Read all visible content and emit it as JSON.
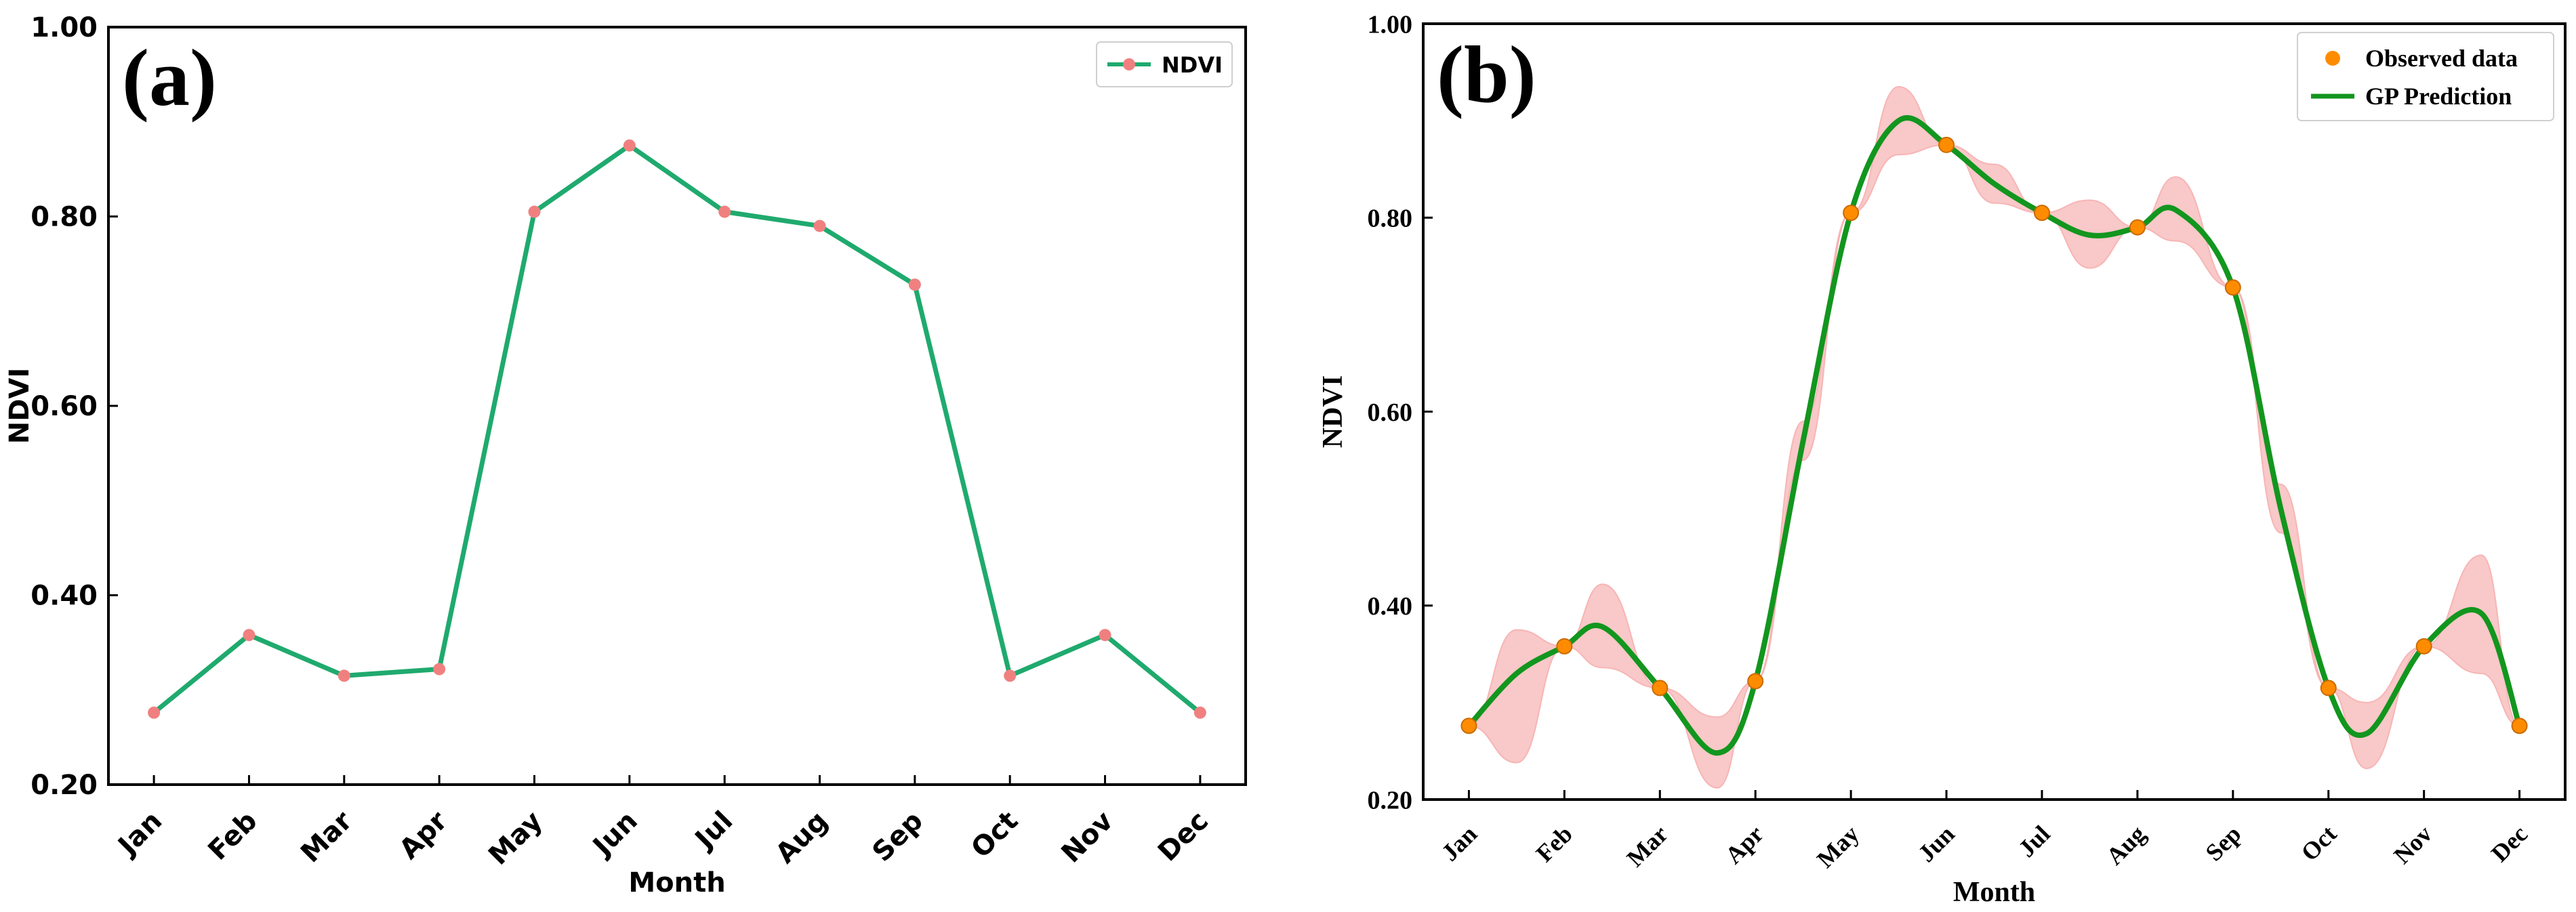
{
  "colors": {
    "ndvi_line": "#1faa6e",
    "ndvi_marker": "#f08080",
    "gp_line": "#12961e",
    "gp_band": "#f7b5b5",
    "observed_marker": "#ff8c00"
  },
  "chart_data": [
    {
      "type": "line",
      "panel_label": "(a)",
      "title": "",
      "xlabel": "Month",
      "ylabel": "NDVI",
      "categories": [
        "Jan",
        "Feb",
        "Mar",
        "Apr",
        "May",
        "Jun",
        "Jul",
        "Aug",
        "Sep",
        "Oct",
        "Nov",
        "Dec"
      ],
      "ylim": [
        0.2,
        1.0
      ],
      "yticks": [
        "0.20",
        "0.40",
        "0.60",
        "0.80",
        "1.00"
      ],
      "series": [
        {
          "name": "NDVI",
          "values": [
            0.276,
            0.358,
            0.315,
            0.322,
            0.805,
            0.875,
            0.805,
            0.79,
            0.728,
            0.315,
            0.358,
            0.276
          ]
        }
      ],
      "legend": {
        "position": "top-right",
        "entries": [
          "NDVI"
        ]
      }
    },
    {
      "type": "line",
      "panel_label": "(b)",
      "title": "",
      "xlabel": "Month",
      "ylabel": "NDVI",
      "categories": [
        "Jan",
        "Feb",
        "Mar",
        "Apr",
        "May",
        "Jun",
        "Jul",
        "Aug",
        "Sep",
        "Oct",
        "Nov",
        "Dec"
      ],
      "ylim": [
        0.2,
        1.0
      ],
      "yticks": [
        "0.20",
        "0.40",
        "0.60",
        "0.80",
        "1.00"
      ],
      "observed": {
        "name": "Observed data",
        "values": [
          0.276,
          0.358,
          0.315,
          0.322,
          0.805,
          0.875,
          0.805,
          0.79,
          0.728,
          0.315,
          0.358,
          0.276
        ]
      },
      "prediction": {
        "name": "GP Prediction",
        "x": [
          0,
          0.5,
          1,
          1.4,
          2,
          2.6,
          3,
          3.5,
          4,
          4.5,
          5,
          5.5,
          6,
          6.5,
          7,
          7.4,
          8,
          8.5,
          9,
          9.4,
          10,
          10.6,
          11
        ],
        "values": [
          0.276,
          0.33,
          0.358,
          0.378,
          0.315,
          0.248,
          0.322,
          0.57,
          0.805,
          0.9,
          0.875,
          0.835,
          0.805,
          0.782,
          0.79,
          0.808,
          0.728,
          0.5,
          0.315,
          0.268,
          0.358,
          0.392,
          0.276
        ],
        "lower": [
          0.276,
          0.238,
          0.358,
          0.336,
          0.315,
          0.212,
          0.322,
          0.55,
          0.805,
          0.865,
          0.875,
          0.815,
          0.805,
          0.748,
          0.79,
          0.776,
          0.728,
          0.475,
          0.315,
          0.232,
          0.358,
          0.33,
          0.276
        ],
        "upper": [
          0.276,
          0.375,
          0.358,
          0.422,
          0.315,
          0.285,
          0.322,
          0.59,
          0.805,
          0.935,
          0.875,
          0.855,
          0.805,
          0.818,
          0.79,
          0.842,
          0.728,
          0.525,
          0.315,
          0.3,
          0.358,
          0.452,
          0.276
        ]
      },
      "legend": {
        "position": "top-right",
        "entries": [
          "Observed data",
          "GP Prediction"
        ]
      }
    }
  ]
}
